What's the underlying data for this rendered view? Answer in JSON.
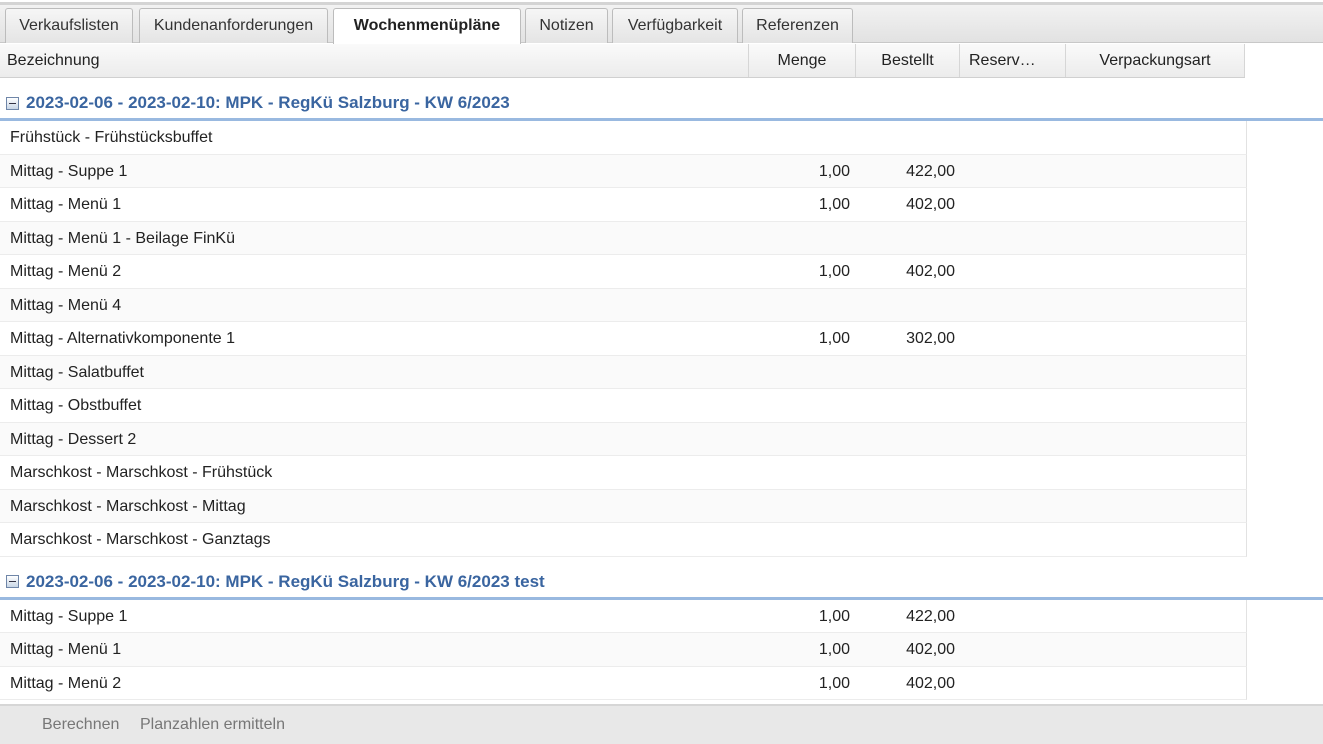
{
  "tabs": [
    {
      "label": "Verkaufslisten"
    },
    {
      "label": "Kundenanforderungen"
    },
    {
      "label": "Wochenmenüpläne",
      "active": true
    },
    {
      "label": "Notizen"
    },
    {
      "label": "Verfügbarkeit"
    },
    {
      "label": "Referenzen"
    }
  ],
  "columns": [
    "Bezeichnung",
    "Menge",
    "Bestellt",
    "Reserv…",
    "Verpackungsart"
  ],
  "groups": [
    {
      "title": "2023-02-06 - 2023-02-10: MPK - RegKü Salzburg - KW 6/2023",
      "rows": [
        [
          "Frühstück - Frühstücksbuffet",
          "",
          ""
        ],
        [
          "Mittag - Suppe 1",
          "1,00",
          "422,00"
        ],
        [
          "Mittag - Menü 1",
          "1,00",
          "402,00"
        ],
        [
          "Mittag - Menü 1 - Beilage FinKü",
          "",
          ""
        ],
        [
          "Mittag - Menü 2",
          "1,00",
          "402,00"
        ],
        [
          "Mittag - Menü 4",
          "",
          ""
        ],
        [
          "Mittag - Alternativkomponente 1",
          "1,00",
          "302,00"
        ],
        [
          "Mittag - Salatbuffet",
          "",
          ""
        ],
        [
          "Mittag - Obstbuffet",
          "",
          ""
        ],
        [
          "Mittag - Dessert 2",
          "",
          ""
        ],
        [
          "Marschkost - Marschkost - Frühstück",
          "",
          ""
        ],
        [
          "Marschkost - Marschkost - Mittag",
          "",
          ""
        ],
        [
          "Marschkost - Marschkost - Ganztags",
          "",
          ""
        ]
      ]
    },
    {
      "title": "2023-02-06 - 2023-02-10: MPK - RegKü Salzburg - KW 6/2023 test",
      "rows": [
        [
          "Mittag - Suppe 1",
          "1,00",
          "422,00"
        ],
        [
          "Mittag - Menü 1",
          "1,00",
          "402,00"
        ],
        [
          "Mittag - Menü 2",
          "1,00",
          "402,00"
        ]
      ]
    }
  ],
  "footer": {
    "calculate": "Berechnen",
    "plan": "Planzahlen ermitteln"
  },
  "colors": {
    "group_title": "#3a65a0",
    "group_border": "#99b9e0"
  }
}
